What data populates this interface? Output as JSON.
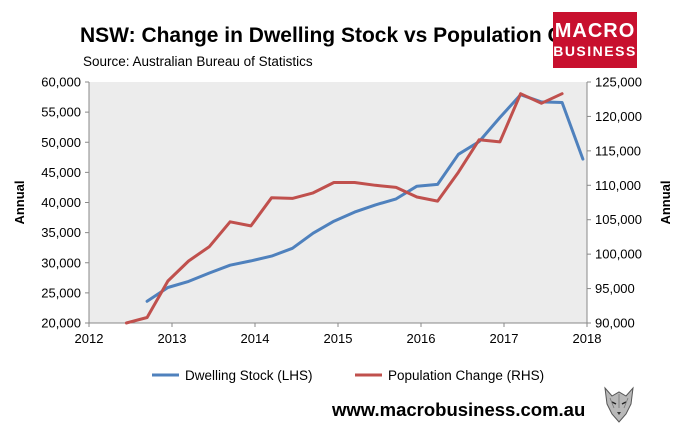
{
  "header": {
    "title": "NSW: Change in Dwelling Stock vs Population Change",
    "source": "Source: Australian Bureau of Statistics"
  },
  "logo": {
    "line1": "MACRO",
    "line2": "BUSINESS"
  },
  "footer": {
    "url": "www.macrobusiness.com.au"
  },
  "chart_data": {
    "type": "line",
    "title": "NSW: Change in Dwelling Stock vs Population Change",
    "subtitle": "Source: Australian Bureau of Statistics",
    "xlim": [
      2012,
      2018
    ],
    "xticks": [
      "2012",
      "2013",
      "2014",
      "2015",
      "2016",
      "2017",
      "2018"
    ],
    "ylabel_left": "Annual",
    "ylabel_right": "Annual",
    "ylim_left": [
      20000,
      60000
    ],
    "ylim_right": [
      90000,
      125000
    ],
    "yticks_left": [
      "20,000",
      "25,000",
      "30,000",
      "35,000",
      "40,000",
      "45,000",
      "50,000",
      "55,000",
      "60,000"
    ],
    "yticks_right": [
      "90,000",
      "95,000",
      "100,000",
      "105,000",
      "110,000",
      "115,000",
      "120,000",
      "125,000"
    ],
    "grid": false,
    "legend": "bottom",
    "series": [
      {
        "name": "Dwelling Stock (LHS)",
        "axis": "left",
        "color": "#4f81bd",
        "x": [
          2012.7,
          2012.95,
          2013.2,
          2013.45,
          2013.7,
          2013.95,
          2014.2,
          2014.45,
          2014.7,
          2014.95,
          2015.2,
          2015.45,
          2015.7,
          2015.95,
          2016.2,
          2016.45,
          2016.7,
          2016.95,
          2017.2,
          2017.45,
          2017.7,
          2017.95
        ],
        "y": [
          23600,
          25900,
          26900,
          28300,
          29600,
          30300,
          31100,
          32400,
          34900,
          36900,
          38400,
          39600,
          40600,
          42700,
          43000,
          48000,
          50100,
          54100,
          57900,
          56700,
          56600,
          47200
        ]
      },
      {
        "name": "Population Change (RHS)",
        "axis": "right",
        "color": "#c0504d",
        "x": [
          2012.45,
          2012.7,
          2012.95,
          2013.2,
          2013.45,
          2013.7,
          2013.95,
          2014.2,
          2014.45,
          2014.7,
          2014.95,
          2015.2,
          2015.45,
          2015.7,
          2015.95,
          2016.2,
          2016.45,
          2016.7,
          2016.95,
          2017.2,
          2017.45,
          2017.7
        ],
        "y": [
          89700,
          90800,
          96100,
          99000,
          101100,
          104700,
          104100,
          108200,
          108100,
          108900,
          110400,
          110400,
          110000,
          109700,
          108300,
          107700,
          111900,
          116600,
          116300,
          123300,
          121900,
          123300
        ]
      }
    ]
  }
}
